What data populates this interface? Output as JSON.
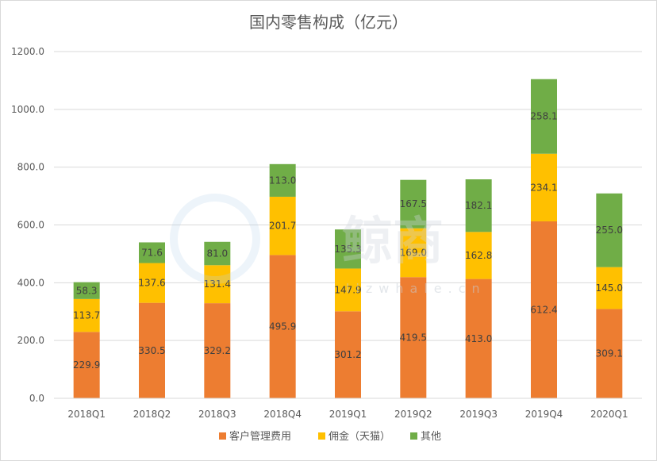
{
  "chart_data": {
    "type": "bar",
    "stacked": true,
    "title": "国内零售构成（亿元）",
    "categories": [
      "2018Q1",
      "2018Q2",
      "2018Q3",
      "2018Q4",
      "2019Q1",
      "2019Q2",
      "2019Q3",
      "2019Q4",
      "2020Q1"
    ],
    "series": [
      {
        "name": "客户管理费用",
        "color": "#ed7d31",
        "values": [
          229.9,
          330.5,
          329.2,
          495.9,
          301.2,
          419.5,
          413.0,
          612.4,
          309.1
        ]
      },
      {
        "name": "佣金（天猫）",
        "color": "#ffc000",
        "values": [
          113.7,
          137.6,
          131.4,
          201.7,
          147.9,
          169.0,
          162.8,
          234.1,
          145.0
        ]
      },
      {
        "name": "其他",
        "color": "#70ad47",
        "values": [
          58.3,
          71.6,
          81.0,
          113.0,
          135.3,
          167.5,
          182.1,
          258.1,
          255.0
        ]
      }
    ],
    "ylim": [
      0,
      1200
    ],
    "yticks": [
      "0.0",
      "200.0",
      "400.0",
      "600.0",
      "800.0",
      "1000.0",
      "1200.0"
    ],
    "grid": true,
    "legend": "bottom"
  },
  "watermark": {
    "text": "鲸商",
    "sub": "lizwhale.cn"
  }
}
